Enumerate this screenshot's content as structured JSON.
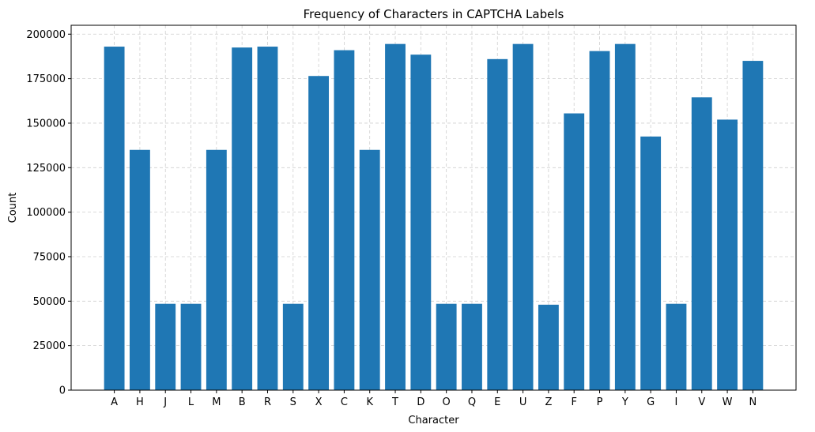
{
  "chart_data": {
    "type": "bar",
    "title": "Frequency of Characters in CAPTCHA Labels",
    "xlabel": "Character",
    "ylabel": "Count",
    "categories": [
      "A",
      "H",
      "J",
      "L",
      "M",
      "B",
      "R",
      "S",
      "X",
      "C",
      "K",
      "T",
      "D",
      "O",
      "Q",
      "E",
      "U",
      "Z",
      "F",
      "P",
      "Y",
      "G",
      "I",
      "V",
      "W",
      "N"
    ],
    "values": [
      193000,
      135000,
      48500,
      48500,
      135000,
      192500,
      193000,
      48500,
      176500,
      191000,
      135000,
      194500,
      188500,
      48500,
      48500,
      186000,
      194500,
      48000,
      155500,
      190500,
      194500,
      142500,
      48500,
      164500,
      152000,
      185000
    ],
    "ylim": [
      0,
      205000
    ],
    "yticks": [
      "0",
      "25000",
      "50000",
      "75000",
      "100000",
      "125000",
      "150000",
      "175000",
      "200000"
    ],
    "grid": true,
    "bar_color": "#1f77b4"
  }
}
